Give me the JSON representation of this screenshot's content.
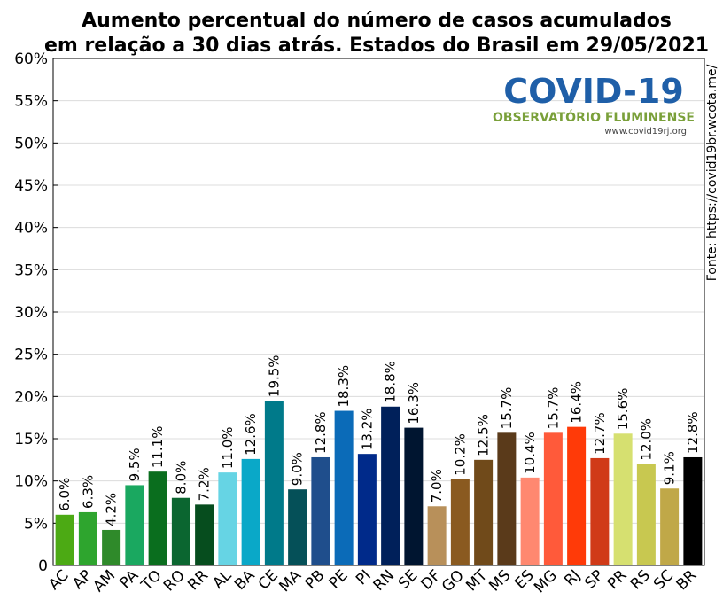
{
  "chart_data": {
    "type": "bar",
    "title": [
      "Aumento percentual do número de casos acumulados",
      "em relação a 30 dias atrás. Estados do Brasil em 29/05/2021"
    ],
    "source": "Fonte: https://covid19br.wcota.me/",
    "logo": {
      "name": "COVID-19",
      "subtitle": "OBSERVATÓRIO FLUMINENSE",
      "url": "www.covid19rj.org"
    },
    "categories": [
      "AC",
      "AP",
      "AM",
      "PA",
      "TO",
      "RO",
      "RR",
      "AL",
      "BA",
      "CE",
      "MA",
      "PB",
      "PE",
      "PI",
      "RN",
      "SE",
      "DF",
      "GO",
      "MT",
      "MS",
      "ES",
      "MG",
      "RJ",
      "SP",
      "PR",
      "RS",
      "SC",
      "BR"
    ],
    "values": [
      6.0,
      6.3,
      4.2,
      9.5,
      11.1,
      8.0,
      7.2,
      11.0,
      12.6,
      19.5,
      9.0,
      12.8,
      18.3,
      13.2,
      18.8,
      16.3,
      7.0,
      10.2,
      12.5,
      15.7,
      10.4,
      15.7,
      16.4,
      12.7,
      15.6,
      12.0,
      9.1,
      12.8
    ],
    "value_labels": [
      "6.0%",
      "6.3%",
      "4.2%",
      "9.5%",
      "11.1%",
      "8.0%",
      "7.2%",
      "11.0%",
      "12.6%",
      "19.5%",
      "9.0%",
      "12.8%",
      "18.3%",
      "13.2%",
      "18.8%",
      "16.3%",
      "7.0%",
      "10.2%",
      "12.5%",
      "15.7%",
      "10.4%",
      "15.7%",
      "16.4%",
      "12.7%",
      "15.6%",
      "12.0%",
      "9.1%",
      "12.8%"
    ],
    "colors": [
      "#4caa14",
      "#2ea52e",
      "#2f8a2a",
      "#1aa860",
      "#0a6e1e",
      "#0b6630",
      "#064d1e",
      "#66d4e4",
      "#0aa8c8",
      "#007a8a",
      "#055058",
      "#1f4e8c",
      "#0b6bb8",
      "#002a8a",
      "#00205a",
      "#001530",
      "#b8905a",
      "#8a5a20",
      "#704a1a",
      "#5a3a1a",
      "#ff8870",
      "#ff5a3a",
      "#ff3a08",
      "#d03a18",
      "#d6e070",
      "#c8c850",
      "#c0a848",
      "#000000"
    ],
    "ylim": [
      0,
      60
    ],
    "yticks": [
      0,
      {
        "value": 5,
        "label": "5%"
      },
      {
        "value": 10,
        "label": "10%"
      },
      {
        "value": 15,
        "label": "15%"
      },
      {
        "value": 20,
        "label": "20%"
      },
      {
        "value": 25,
        "label": "25%"
      },
      {
        "value": 30,
        "label": "30%"
      },
      {
        "value": 35,
        "label": "35%"
      },
      {
        "value": 40,
        "label": "40%"
      },
      {
        "value": 45,
        "label": "45%"
      },
      {
        "value": 50,
        "label": "50%"
      },
      {
        "value": 55,
        "label": "55%"
      },
      {
        "value": 60,
        "label": "60%"
      }
    ],
    "grid": true
  }
}
